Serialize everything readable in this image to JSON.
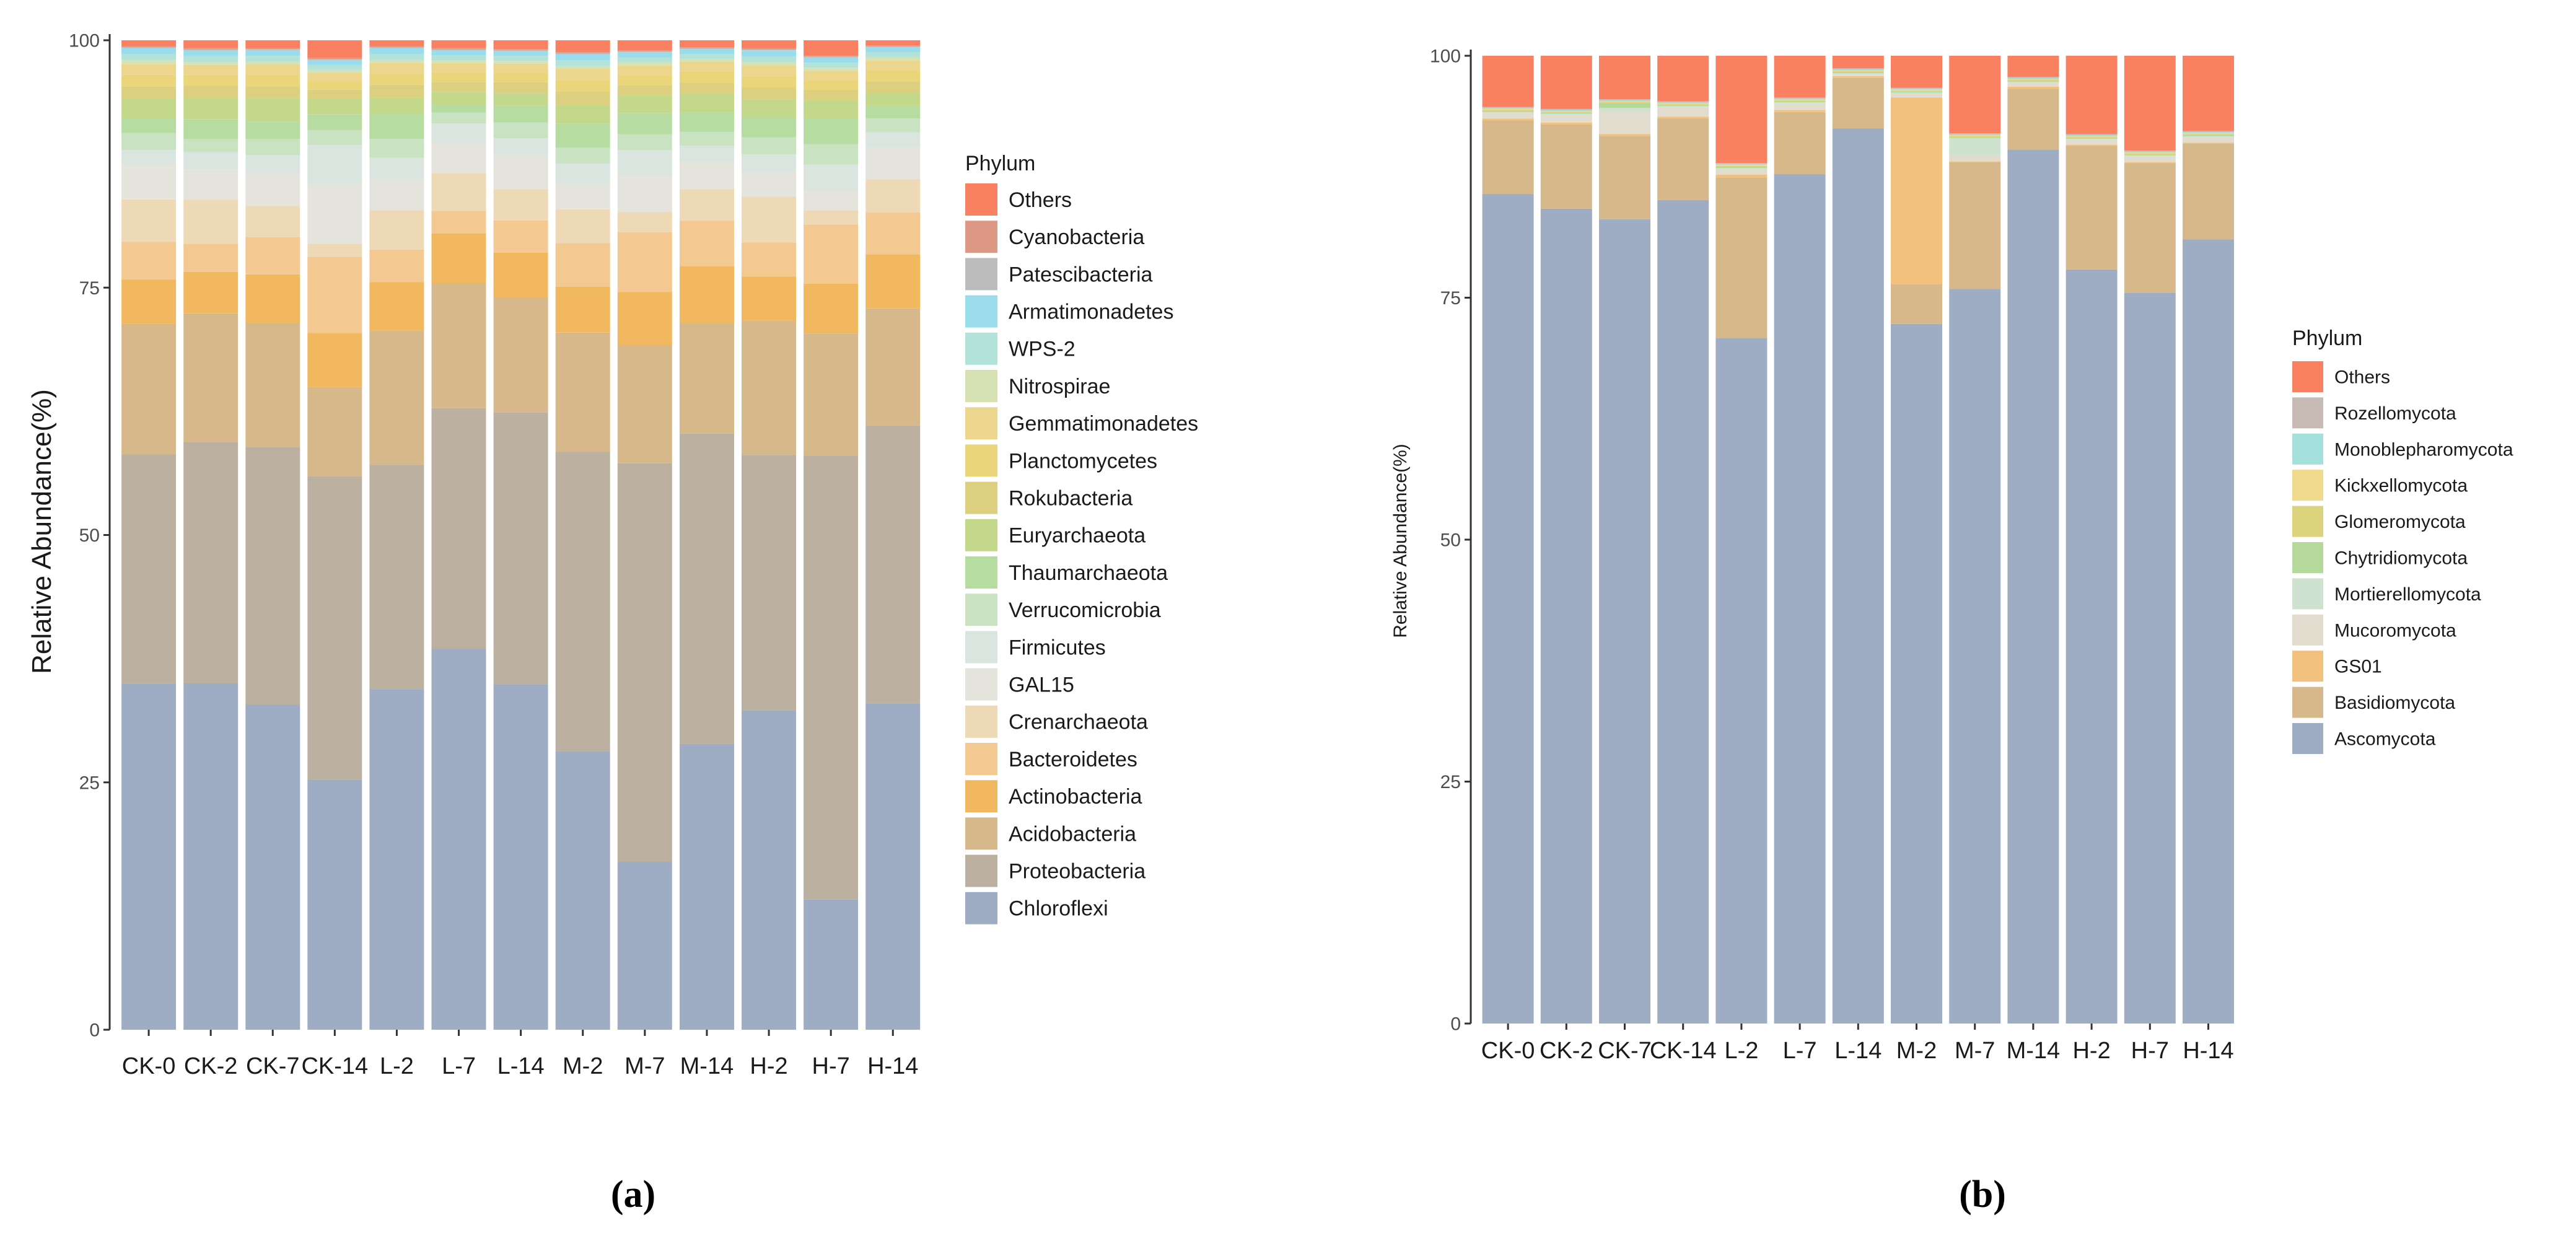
{
  "chart_data": [
    {
      "type": "bar",
      "stacked": true,
      "panel": "a",
      "caption": "(a)",
      "ylabel": "Relative Abundance(%)",
      "xlabel": "",
      "ylim": [
        0,
        100
      ],
      "y_ticks": [
        0,
        25,
        50,
        75,
        100
      ],
      "legend_title": "Phylum",
      "legend_position": "right",
      "categories": [
        "CK-0",
        "CK-2",
        "CK-7",
        "CK-14",
        "L-2",
        "L-7",
        "L-14",
        "M-2",
        "M-7",
        "M-14",
        "H-2",
        "H-7",
        "H-14"
      ],
      "series": [
        {
          "name": "Chloroflexi",
          "color": "#9fadc4",
          "values": [
            35.0,
            35.0,
            33.2,
            25.3,
            34.5,
            38.4,
            35.3,
            28.0,
            16.8,
            29.0,
            31.9,
            12.8,
            32.6
          ]
        },
        {
          "name": "Proteobacteria",
          "color": "#bcb0a0",
          "values": [
            23.2,
            24.4,
            26.3,
            30.7,
            22.7,
            24.3,
            27.8,
            30.1,
            39.9,
            31.5,
            25.5,
            43.6,
            27.8
          ]
        },
        {
          "name": "Acidobacteria",
          "color": "#d6b88b",
          "values": [
            13.2,
            13.0,
            12.6,
            9.0,
            13.6,
            12.6,
            11.7,
            12.0,
            11.8,
            11.2,
            13.4,
            12.0,
            11.7
          ]
        },
        {
          "name": "Actinobacteria",
          "color": "#f2b860",
          "values": [
            4.5,
            4.2,
            5.0,
            5.5,
            4.9,
            5.0,
            4.6,
            4.6,
            5.3,
            5.8,
            4.4,
            4.9,
            5.4
          ]
        },
        {
          "name": "Bacteroidetes",
          "color": "#f3c991",
          "values": [
            3.8,
            2.8,
            3.8,
            7.7,
            3.3,
            2.3,
            3.3,
            4.4,
            6.0,
            4.6,
            3.4,
            5.8,
            4.2
          ]
        },
        {
          "name": "Crenarchaeota",
          "color": "#eed9b6",
          "values": [
            4.3,
            4.5,
            3.2,
            1.3,
            4.0,
            3.8,
            3.2,
            3.4,
            2.0,
            3.2,
            4.6,
            1.4,
            3.3
          ]
        },
        {
          "name": "GAL15",
          "color": "#e4e3dc",
          "values": [
            3.5,
            3.0,
            3.3,
            6.0,
            3.1,
            3.0,
            3.5,
            2.5,
            3.6,
            2.7,
            2.4,
            2.0,
            3.2
          ]
        },
        {
          "name": "Firmicutes",
          "color": "#d9e5de",
          "values": [
            1.5,
            1.8,
            1.9,
            4.0,
            2.2,
            2.0,
            1.7,
            2.1,
            2.6,
            1.7,
            1.8,
            2.5,
            1.5
          ]
        },
        {
          "name": "Verrucomicrobia",
          "color": "#c9e3c2",
          "values": [
            1.7,
            1.3,
            1.6,
            1.5,
            1.9,
            1.1,
            1.6,
            1.6,
            1.6,
            1.4,
            1.7,
            2.0,
            1.4
          ]
        },
        {
          "name": "Thaumarchaeota",
          "color": "#b7dca1",
          "values": [
            1.5,
            2.0,
            1.8,
            1.6,
            2.5,
            0.8,
            1.7,
            2.4,
            2.1,
            2.0,
            2.0,
            2.5,
            1.2
          ]
        },
        {
          "name": "Euryarchaeota",
          "color": "#c3d88b",
          "values": [
            2.0,
            2.2,
            2.4,
            1.6,
            1.7,
            1.3,
            1.3,
            1.9,
            1.8,
            1.9,
            1.8,
            1.8,
            1.4
          ]
        },
        {
          "name": "Rokubacteria",
          "color": "#dcd080",
          "values": [
            1.2,
            1.2,
            1.2,
            0.9,
            1.3,
            1.0,
            1.1,
            1.3,
            1.0,
            1.1,
            1.2,
            1.0,
            1.1
          ]
        },
        {
          "name": "Planctomycetes",
          "color": "#ead57a",
          "values": [
            1.2,
            1.1,
            1.2,
            0.9,
            1.1,
            1.0,
            1.0,
            1.2,
            1.0,
            1.1,
            1.1,
            1.0,
            1.1
          ]
        },
        {
          "name": "Gemmatimonadetes",
          "color": "#ecd68d",
          "values": [
            1.1,
            1.0,
            1.0,
            0.8,
            1.1,
            0.9,
            0.9,
            1.1,
            1.0,
            1.0,
            1.1,
            0.9,
            1.0
          ]
        },
        {
          "name": "Nitrospirae",
          "color": "#d7e2b4",
          "values": [
            0.4,
            0.3,
            0.3,
            0.3,
            0.3,
            0.3,
            0.3,
            0.3,
            0.3,
            0.3,
            0.3,
            0.3,
            0.3
          ]
        },
        {
          "name": "WPS-2",
          "color": "#b2e2d8",
          "values": [
            0.6,
            0.6,
            0.6,
            0.5,
            0.6,
            0.5,
            0.5,
            0.6,
            0.5,
            0.5,
            0.6,
            0.5,
            0.5
          ]
        },
        {
          "name": "Armatimonadetes",
          "color": "#9bdcec",
          "values": [
            0.6,
            0.6,
            0.6,
            0.5,
            0.6,
            0.5,
            0.5,
            0.6,
            0.5,
            0.5,
            0.6,
            0.5,
            0.5
          ]
        },
        {
          "name": "Patescibacteria",
          "color": "#bcbcbc",
          "values": [
            0.1,
            0.1,
            0.1,
            0.1,
            0.1,
            0.1,
            0.1,
            0.1,
            0.1,
            0.1,
            0.1,
            0.1,
            0.1
          ]
        },
        {
          "name": "Cyanobacteria",
          "color": "#dd9886",
          "values": [
            0.1,
            0.1,
            0.1,
            0.1,
            0.1,
            0.1,
            0.1,
            0.1,
            0.1,
            0.1,
            0.1,
            0.1,
            0.1
          ]
        },
        {
          "name": "Others",
          "color": "#f98061",
          "values": [
            0.6,
            0.8,
            0.8,
            1.8,
            0.6,
            0.8,
            0.9,
            1.2,
            1.0,
            0.7,
            0.8,
            1.5,
            0.5
          ]
        }
      ]
    },
    {
      "type": "bar",
      "stacked": true,
      "panel": "b",
      "caption": "(b)",
      "ylabel": "Relative Abundance(%)",
      "xlabel": "",
      "ylim": [
        0,
        100
      ],
      "y_ticks": [
        0,
        25,
        50,
        75,
        100
      ],
      "legend_title": "Phylum",
      "legend_position": "right",
      "categories": [
        "CK-0",
        "CK-2",
        "CK-7",
        "CK-14",
        "L-2",
        "L-7",
        "L-14",
        "M-2",
        "M-7",
        "M-14",
        "H-2",
        "H-7",
        "H-14"
      ],
      "series": [
        {
          "name": "Ascomycota",
          "color": "#9fadc4",
          "values": [
            85.8,
            84.2,
            83.1,
            85.1,
            70.9,
            87.5,
            92.5,
            72.3,
            75.9,
            90.4,
            78.0,
            75.6,
            81.1
          ]
        },
        {
          "name": "Basidiomycota",
          "color": "#d6b88b",
          "values": [
            7.6,
            8.7,
            8.6,
            8.4,
            16.6,
            6.4,
            5.2,
            4.1,
            13.1,
            6.3,
            12.8,
            13.4,
            9.9
          ]
        },
        {
          "name": "GS01",
          "color": "#f3c17e",
          "values": [
            0.2,
            0.2,
            0.2,
            0.2,
            0.3,
            0.2,
            0.2,
            19.3,
            0.1,
            0.2,
            0.1,
            0.1,
            0.1
          ]
        },
        {
          "name": "Mucoromycota",
          "color": "#e2dccf",
          "values": [
            0.6,
            0.8,
            2.4,
            1.0,
            0.6,
            0.7,
            0.2,
            0.4,
            0.6,
            0.4,
            0.5,
            0.6,
            0.6
          ]
        },
        {
          "name": "Mortierellomycota",
          "color": "#cfe2cf",
          "values": [
            0.1,
            0.1,
            0.3,
            0.1,
            0.1,
            0.1,
            0.1,
            0.1,
            1.8,
            0.1,
            0.1,
            0.1,
            0.1
          ]
        },
        {
          "name": "Chytridiomycota",
          "color": "#b5d99a",
          "values": [
            0.1,
            0.1,
            0.5,
            0.1,
            0.1,
            0.1,
            0.1,
            0.1,
            0.1,
            0.1,
            0.1,
            0.1,
            0.1
          ]
        },
        {
          "name": "Glomeromycota",
          "color": "#dcd37d",
          "values": [
            0.1,
            0.1,
            0.1,
            0.1,
            0.1,
            0.1,
            0.1,
            0.1,
            0.1,
            0.1,
            0.1,
            0.1,
            0.1
          ]
        },
        {
          "name": "Kickxellomycota",
          "color": "#eed98c",
          "values": [
            0.1,
            0.1,
            0.1,
            0.1,
            0.1,
            0.1,
            0.1,
            0.1,
            0.1,
            0.1,
            0.1,
            0.1,
            0.1
          ]
        },
        {
          "name": "Monoblepharomycota",
          "color": "#a6e0dd",
          "values": [
            0.1,
            0.1,
            0.1,
            0.1,
            0.1,
            0.1,
            0.1,
            0.1,
            0.1,
            0.1,
            0.1,
            0.1,
            0.1
          ]
        },
        {
          "name": "Rozellomycota",
          "color": "#c7b9b4",
          "values": [
            0.1,
            0.1,
            0.1,
            0.1,
            0.1,
            0.1,
            0.1,
            0.1,
            0.1,
            0.1,
            0.1,
            0.1,
            0.1
          ]
        },
        {
          "name": "Others",
          "color": "#f98061",
          "values": [
            5.3,
            5.5,
            4.5,
            4.7,
            11.1,
            4.3,
            1.3,
            3.3,
            8.0,
            2.2,
            8.1,
            9.8,
            7.8
          ]
        }
      ]
    }
  ]
}
